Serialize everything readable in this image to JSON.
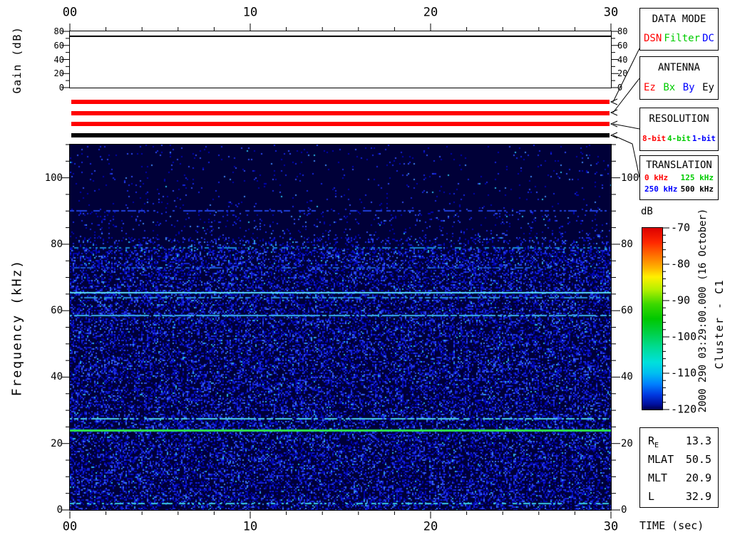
{
  "top_axis": {
    "tick_labels": [
      "00",
      "10",
      "20",
      "30"
    ]
  },
  "gain_plot": {
    "ylabel": "Gain (dB)",
    "tick_labels": [
      "80",
      "60",
      "40",
      "20",
      "0"
    ],
    "trace_gain_db": 73
  },
  "status_bars": [
    {
      "name": "data-mode-bar",
      "color": "#ff0000"
    },
    {
      "name": "antenna-bar",
      "color": "#ff0000"
    },
    {
      "name": "resolution-bar",
      "color": "#ff0000"
    },
    {
      "name": "translation-bar",
      "color": "#000000"
    }
  ],
  "panels": [
    {
      "title": "DATA MODE",
      "rows": [
        [
          {
            "label": "DSN",
            "color": "#ff0000"
          },
          {
            "label": "Filter",
            "color": "#00cc00"
          },
          {
            "label": "DC",
            "color": "#0000ff"
          }
        ]
      ]
    },
    {
      "title": "ANTENNA",
      "rows": [
        [
          {
            "label": "Ez",
            "color": "#ff0000"
          },
          {
            "label": "Bx",
            "color": "#00cc00"
          },
          {
            "label": "By",
            "color": "#0000ff"
          },
          {
            "label": "Ey",
            "color": "#000000"
          }
        ]
      ]
    },
    {
      "title": "RESOLUTION",
      "rows": [
        [
          {
            "label": "8-bit",
            "color": "#ff0000"
          },
          {
            "label": "4-bit",
            "color": "#00cc00"
          },
          {
            "label": "1-bit",
            "color": "#0000ff"
          }
        ]
      ]
    },
    {
      "title": "TRANSLATION",
      "rows": [
        [
          {
            "label": "0 kHz",
            "color": "#ff0000"
          },
          {
            "label": "125 kHz",
            "color": "#00cc00"
          }
        ],
        [
          {
            "label": "250 kHz",
            "color": "#0000ff"
          },
          {
            "label": "500 kHz",
            "color": "#000000"
          }
        ]
      ]
    }
  ],
  "colorbar": {
    "label": "dB",
    "tick_labels": [
      "-70",
      "-80",
      "-90",
      "-100",
      "-110",
      "-120"
    ]
  },
  "side_text": {
    "datetime": "2000 290 03:29:00.000 (16 October)",
    "spacecraft": "Cluster - C1"
  },
  "info_box": {
    "rows": [
      {
        "label": "R",
        "sub": "E",
        "value": "13.3"
      },
      {
        "label": "MLAT",
        "sub": "",
        "value": "50.5"
      },
      {
        "label": "MLT",
        "sub": "",
        "value": "20.9"
      },
      {
        "label": "L",
        "sub": "",
        "value": "32.9"
      }
    ]
  },
  "bottom_axis": {
    "label": "TIME (sec)",
    "tick_labels": [
      "00",
      "10",
      "20",
      "30"
    ]
  },
  "freq_axis": {
    "label": "Frequency (kHz)",
    "tick_labels": [
      "100",
      "80",
      "60",
      "40",
      "20"
    ],
    "zero_label": "0"
  },
  "chart_data": {
    "type": "heatmap",
    "subtype": "spectrogram",
    "title": "Cluster - C1 wideband spectrogram, 2000 290 03:29:00.000 (16 October)",
    "xlabel": "TIME (sec)",
    "ylabel": "Frequency (kHz)",
    "xlim": [
      0,
      30
    ],
    "ylim": [
      0,
      110
    ],
    "x_ticks_sec": {
      "minor_step": 2,
      "major_step": 10,
      "major_labels": [
        "00",
        "10",
        "20",
        "30"
      ]
    },
    "y_ticks_khz": {
      "minor_step": 5,
      "major_step": 20,
      "major_labels": [
        0,
        20,
        40,
        60,
        80,
        100
      ]
    },
    "gain_trace": {
      "ylabel": "Gain (dB)",
      "ylim": [
        0,
        80
      ],
      "constant_value_db": 73
    },
    "colorbar": {
      "label": "dB",
      "max": -70,
      "min": -120,
      "major_tick_step": 10,
      "minor_tick_step": 2,
      "gradient_stops": [
        {
          "pos": 0.0,
          "color": "#dc0000"
        },
        {
          "pos": 0.08,
          "color": "#ff2800"
        },
        {
          "pos": 0.16,
          "color": "#ff7800"
        },
        {
          "pos": 0.22,
          "color": "#ffb400"
        },
        {
          "pos": 0.27,
          "color": "#fff000"
        },
        {
          "pos": 0.34,
          "color": "#b4f000"
        },
        {
          "pos": 0.42,
          "color": "#3cd800"
        },
        {
          "pos": 0.5,
          "color": "#00c800"
        },
        {
          "pos": 0.58,
          "color": "#00d048"
        },
        {
          "pos": 0.66,
          "color": "#00dc96"
        },
        {
          "pos": 0.74,
          "color": "#00e0dc"
        },
        {
          "pos": 0.8,
          "color": "#00bef0"
        },
        {
          "pos": 0.86,
          "color": "#0080ff"
        },
        {
          "pos": 0.92,
          "color": "#0038e0"
        },
        {
          "pos": 0.97,
          "color": "#0010a0"
        },
        {
          "pos": 1.0,
          "color": "#000050"
        }
      ]
    },
    "spectrogram": {
      "background_color": "#000038",
      "background_db": -120,
      "noise_regions": [
        {
          "f_min_khz": 0,
          "f_max_khz": 79,
          "density": 0.38,
          "approx_db": -113
        },
        {
          "f_min_khz": 79,
          "f_max_khz": 82.5,
          "density": 0.2,
          "approx_db": -116
        },
        {
          "f_min_khz": 82.5,
          "f_max_khz": 90,
          "density": 0.06,
          "approx_db": -118
        },
        {
          "f_min_khz": 90,
          "f_max_khz": 110,
          "density": 0.03,
          "approx_db": -119
        }
      ],
      "noise_palette": [
        {
          "weight": 0.45,
          "color": "#0104b0"
        },
        {
          "weight": 0.3,
          "color": "#1624dc"
        },
        {
          "weight": 0.15,
          "color": "#2c48ee"
        },
        {
          "weight": 0.07,
          "color": "#3c80f0"
        },
        {
          "weight": 0.03,
          "color": "#28b4e8"
        }
      ],
      "emission_lines": [
        {
          "freq_khz": 90,
          "approx_db": -112,
          "color": "#2040dd",
          "thickness": 2,
          "density": 0.5
        },
        {
          "freq_khz": 79,
          "approx_db": -111,
          "color": "#1888cc",
          "thickness": 2,
          "density": 0.4
        },
        {
          "freq_khz": 73,
          "approx_db": -113,
          "color": "#1858cc",
          "thickness": 2,
          "density": 0.32
        },
        {
          "freq_khz": 65.5,
          "approx_db": -105,
          "color": "#58dcf8",
          "thickness": 2,
          "density": 1.0
        },
        {
          "freq_khz": 63.8,
          "approx_db": -110,
          "color": "#2890d8",
          "thickness": 2,
          "density": 0.55
        },
        {
          "freq_khz": 58.5,
          "approx_db": -108,
          "color": "#38b0e8",
          "thickness": 2,
          "density": 0.85
        },
        {
          "freq_khz": 27.5,
          "approx_db": -107,
          "color": "#48cce8",
          "thickness": 2,
          "density": 0.75
        },
        {
          "freq_khz": 24,
          "approx_db": -97,
          "color": "#2ee44e",
          "thickness": 3,
          "density": 1.0
        },
        {
          "freq_khz": 2,
          "approx_db": -108,
          "color": "#38c8e0",
          "thickness": 2,
          "density": 0.5
        }
      ]
    }
  }
}
